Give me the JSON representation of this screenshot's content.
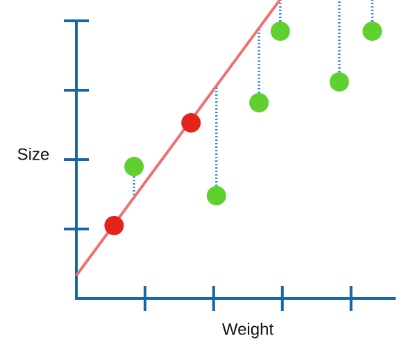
{
  "chart_data": {
    "type": "scatter",
    "xlabel": "Weight",
    "ylabel": "Size",
    "xlim": [
      0,
      4.65
    ],
    "ylim": [
      0,
      4
    ],
    "xticks": [
      1,
      2,
      3,
      4
    ],
    "yticks": [
      1,
      2,
      3,
      4
    ],
    "axis_color": "#1766a6",
    "fit": {
      "intercept": 0.33,
      "slope": 1.34,
      "color": "#f07070"
    },
    "series": [
      {
        "color": "#e3241b",
        "residuals": false,
        "x": [
          0.55,
          1.67
        ],
        "values": [
          1.05,
          2.53
        ]
      },
      {
        "color": "#5fd12f",
        "residuals": true,
        "residual_color": "#2a8fe0",
        "x": [
          0.84,
          2.04,
          2.66,
          2.97,
          3.83,
          4.31
        ],
        "values": [
          1.9,
          1.48,
          2.82,
          3.85,
          3.12,
          3.85
        ]
      }
    ]
  }
}
